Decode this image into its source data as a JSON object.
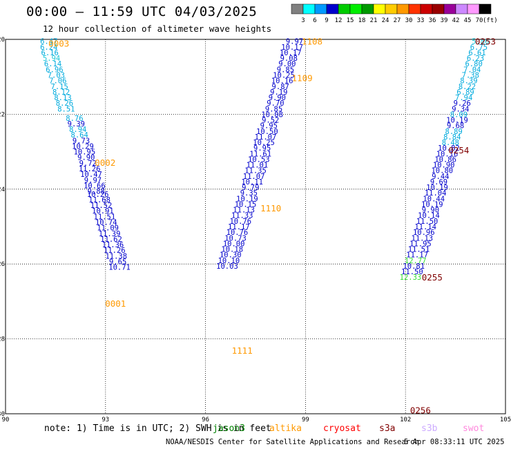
{
  "title": "00:00 – 11:59 UTC 04/03/2025",
  "subtitle": "12 hour collection of altimeter wave heights",
  "note": "note: 1) Time is in UTC; 2) SWH is in feet",
  "footer_left": "NOAA/NESDIS Center for Satellite Applications and Research",
  "footer_right": "5 Apr 08:33:11 UTC 2025",
  "satellites": [
    {
      "name": "jason3",
      "color": "#008000"
    },
    {
      "name": "altika",
      "color": "#ff9900"
    },
    {
      "name": "cryosat",
      "color": "#ff0000"
    },
    {
      "name": "s3a",
      "color": "#800000"
    },
    {
      "name": "s3b",
      "color": "#ccaaff"
    },
    {
      "name": "swot",
      "color": "#ff88dd"
    }
  ],
  "chart_data": {
    "type": "scatter",
    "xlabel": "",
    "ylabel": "",
    "xlim": [
      90,
      105
    ],
    "ylim": [
      -30,
      -20
    ],
    "x_ticks": [
      "90",
      "93",
      "96",
      "99",
      "102",
      "105"
    ],
    "y_ticks": [
      "-20",
      "-22",
      "-24",
      "-26",
      "-28",
      "-30"
    ],
    "grid": true,
    "colorbar": {
      "ticks": [
        "3",
        "6",
        "9",
        "12",
        "15",
        "18",
        "21",
        "24",
        "27",
        "30",
        "33",
        "36",
        "39",
        "42",
        "45",
        "70"
      ],
      "unit": "(ft)",
      "colors": [
        "#808080",
        "#00ffff",
        "#0099ff",
        "#0000cc",
        "#00cc00",
        "#00ee00",
        "#009900",
        "#ffff00",
        "#ffcc00",
        "#ff9900",
        "#ff3300",
        "#cc0000",
        "#990000",
        "#990099",
        "#cc88ff",
        "#ff99ff",
        "#000000"
      ]
    },
    "time_labels": [
      {
        "text": "0003",
        "lon": 91.6,
        "lat": -20.1,
        "color": "#ff9900"
      },
      {
        "text": "0002",
        "lon": 92.99,
        "lat": -23.28,
        "color": "#ff9900"
      },
      {
        "text": "0001",
        "lon": 93.3,
        "lat": -27.05,
        "color": "#ff9900"
      },
      {
        "text": "1108",
        "lon": 99.2,
        "lat": -20.05,
        "color": "#ff9900"
      },
      {
        "text": "1109",
        "lon": 98.9,
        "lat": -21.02,
        "color": "#ff9900"
      },
      {
        "text": "1110",
        "lon": 97.96,
        "lat": -24.5,
        "color": "#ff9900"
      },
      {
        "text": "1111",
        "lon": 97.1,
        "lat": -28.3,
        "color": "#ff9900"
      },
      {
        "text": "0253",
        "lon": 104.4,
        "lat": -20.05,
        "color": "#800000"
      },
      {
        "text": "0254",
        "lon": 103.6,
        "lat": -22.95,
        "color": "#800000"
      },
      {
        "text": "0255",
        "lon": 102.8,
        "lat": -26.35,
        "color": "#800000"
      },
      {
        "text": "0256",
        "lon": 102.45,
        "lat": -29.9,
        "color": "#800000"
      }
    ],
    "points": [
      {
        "lon": 91.3,
        "lat": -20.05,
        "v": 6.47
      },
      {
        "lon": 91.3,
        "lat": -20.2,
        "v": 6.24
      },
      {
        "lon": 91.33,
        "lat": -20.35,
        "v": 6.16
      },
      {
        "lon": 91.38,
        "lat": -20.5,
        "v": 5.94
      },
      {
        "lon": 91.42,
        "lat": -20.65,
        "v": 6.14
      },
      {
        "lon": 91.47,
        "lat": -20.8,
        "v": 6.96
      },
      {
        "lon": 91.52,
        "lat": -20.95,
        "v": 7.03
      },
      {
        "lon": 91.57,
        "lat": -21.1,
        "v": 7.06
      },
      {
        "lon": 91.62,
        "lat": -21.25,
        "v": 7.15
      },
      {
        "lon": 91.67,
        "lat": -21.4,
        "v": 8.12
      },
      {
        "lon": 91.72,
        "lat": -21.55,
        "v": 8.13
      },
      {
        "lon": 91.77,
        "lat": -21.7,
        "v": 8.26
      },
      {
        "lon": 91.82,
        "lat": -21.85,
        "v": 8.51
      },
      {
        "lon": 92.07,
        "lat": -22.1,
        "v": 8.76
      },
      {
        "lon": 92.12,
        "lat": -22.25,
        "v": 9.39
      },
      {
        "lon": 92.17,
        "lat": -22.4,
        "v": 8.94
      },
      {
        "lon": 92.22,
        "lat": -22.55,
        "v": 8.64
      },
      {
        "lon": 92.27,
        "lat": -22.7,
        "v": 9.73
      },
      {
        "lon": 92.32,
        "lat": -22.85,
        "v": 10.29
      },
      {
        "lon": 92.37,
        "lat": -23.0,
        "v": 10.95
      },
      {
        "lon": 92.42,
        "lat": -23.15,
        "v": 9.9
      },
      {
        "lon": 92.47,
        "lat": -23.3,
        "v": 9.72
      },
      {
        "lon": 92.52,
        "lat": -23.45,
        "v": 11.26
      },
      {
        "lon": 92.57,
        "lat": -23.6,
        "v": 10.47
      },
      {
        "lon": 92.62,
        "lat": -23.75,
        "v": 9.97
      },
      {
        "lon": 92.67,
        "lat": -23.9,
        "v": 10.66
      },
      {
        "lon": 92.72,
        "lat": -24.05,
        "v": 9.88
      },
      {
        "lon": 92.77,
        "lat": -24.13,
        "v": 10.26
      },
      {
        "lon": 92.82,
        "lat": -24.28,
        "v": 11.68
      },
      {
        "lon": 92.87,
        "lat": -24.43,
        "v": 11.52
      },
      {
        "lon": 92.92,
        "lat": -24.58,
        "v": 10.91
      },
      {
        "lon": 92.97,
        "lat": -24.73,
        "v": 11.51
      },
      {
        "lon": 93.02,
        "lat": -24.88,
        "v": 10.74
      },
      {
        "lon": 93.07,
        "lat": -25.03,
        "v": 11.09
      },
      {
        "lon": 93.12,
        "lat": -25.18,
        "v": 11.39
      },
      {
        "lon": 93.17,
        "lat": -25.33,
        "v": 11.62
      },
      {
        "lon": 93.22,
        "lat": -25.48,
        "v": 11.36
      },
      {
        "lon": 93.27,
        "lat": -25.63,
        "v": 11.26
      },
      {
        "lon": 93.32,
        "lat": -25.78,
        "v": 11.38
      },
      {
        "lon": 93.37,
        "lat": -25.93,
        "v": 9.65
      },
      {
        "lon": 93.42,
        "lat": -26.08,
        "v": 10.71
      },
      {
        "lon": 98.67,
        "lat": -20.05,
        "v": 9.97
      },
      {
        "lon": 98.6,
        "lat": -20.2,
        "v": 10.17
      },
      {
        "lon": 98.55,
        "lat": -20.35,
        "v": 10.17
      },
      {
        "lon": 98.5,
        "lat": -20.5,
        "v": 9.08
      },
      {
        "lon": 98.45,
        "lat": -20.65,
        "v": 9.0
      },
      {
        "lon": 98.4,
        "lat": -20.8,
        "v": 9.85
      },
      {
        "lon": 98.35,
        "lat": -20.95,
        "v": 10.25
      },
      {
        "lon": 98.3,
        "lat": -21.1,
        "v": 10.16
      },
      {
        "lon": 98.25,
        "lat": -21.25,
        "v": 9.87
      },
      {
        "lon": 98.2,
        "lat": -21.4,
        "v": 9.19
      },
      {
        "lon": 98.15,
        "lat": -21.55,
        "v": 9.9
      },
      {
        "lon": 98.1,
        "lat": -21.7,
        "v": 9.7
      },
      {
        "lon": 98.05,
        "lat": -21.85,
        "v": 9.85
      },
      {
        "lon": 98.0,
        "lat": -22.0,
        "v": 10.08
      },
      {
        "lon": 97.95,
        "lat": -22.15,
        "v": 9.52
      },
      {
        "lon": 97.9,
        "lat": -22.3,
        "v": 9.95
      },
      {
        "lon": 97.85,
        "lat": -22.45,
        "v": 10.5
      },
      {
        "lon": 97.8,
        "lat": -22.6,
        "v": 11.07
      },
      {
        "lon": 97.75,
        "lat": -22.75,
        "v": 10.25
      },
      {
        "lon": 97.7,
        "lat": -22.9,
        "v": 9.95
      },
      {
        "lon": 97.65,
        "lat": -23.05,
        "v": 11.61
      },
      {
        "lon": 97.6,
        "lat": -23.2,
        "v": 10.53
      },
      {
        "lon": 97.55,
        "lat": -23.35,
        "v": 11.01
      },
      {
        "lon": 97.5,
        "lat": -23.5,
        "v": 11.35
      },
      {
        "lon": 97.45,
        "lat": -23.65,
        "v": 11.07
      },
      {
        "lon": 97.4,
        "lat": -23.8,
        "v": 10.11
      },
      {
        "lon": 97.35,
        "lat": -23.95,
        "v": 9.79
      },
      {
        "lon": 97.3,
        "lat": -24.1,
        "v": 9.35
      },
      {
        "lon": 97.25,
        "lat": -24.25,
        "v": 10.19
      },
      {
        "lon": 97.2,
        "lat": -24.4,
        "v": 10.15
      },
      {
        "lon": 97.15,
        "lat": -24.55,
        "v": 11.13
      },
      {
        "lon": 97.1,
        "lat": -24.7,
        "v": 11.33
      },
      {
        "lon": 97.05,
        "lat": -24.85,
        "v": 10.76
      },
      {
        "lon": 97.0,
        "lat": -25.0,
        "v": 11.17
      },
      {
        "lon": 96.95,
        "lat": -25.15,
        "v": 10.76
      },
      {
        "lon": 96.9,
        "lat": -25.3,
        "v": 10.73
      },
      {
        "lon": 96.85,
        "lat": -25.45,
        "v": 10.0
      },
      {
        "lon": 96.8,
        "lat": -25.6,
        "v": 10.18
      },
      {
        "lon": 96.75,
        "lat": -25.75,
        "v": 10.3
      },
      {
        "lon": 96.7,
        "lat": -25.9,
        "v": 10.1
      },
      {
        "lon": 96.65,
        "lat": -26.05,
        "v": 10.03
      },
      {
        "lon": 104.25,
        "lat": -20.05,
        "v": 5.86
      },
      {
        "lon": 104.2,
        "lat": -20.2,
        "v": 6.75
      },
      {
        "lon": 104.15,
        "lat": -20.35,
        "v": 6.61
      },
      {
        "lon": 104.1,
        "lat": -20.5,
        "v": 6.23
      },
      {
        "lon": 104.05,
        "lat": -20.65,
        "v": 6.8
      },
      {
        "lon": 104.0,
        "lat": -20.8,
        "v": 7.04
      },
      {
        "lon": 103.95,
        "lat": -20.95,
        "v": 7.38
      },
      {
        "lon": 103.9,
        "lat": -21.1,
        "v": 8.39
      },
      {
        "lon": 103.85,
        "lat": -21.25,
        "v": 8.22
      },
      {
        "lon": 103.8,
        "lat": -21.4,
        "v": 6.89
      },
      {
        "lon": 103.75,
        "lat": -21.55,
        "v": 7.94
      },
      {
        "lon": 103.7,
        "lat": -21.7,
        "v": 9.26
      },
      {
        "lon": 103.65,
        "lat": -21.85,
        "v": 9.34
      },
      {
        "lon": 103.6,
        "lat": -22.0,
        "v": 8.09
      },
      {
        "lon": 103.55,
        "lat": -22.15,
        "v": 10.19
      },
      {
        "lon": 103.5,
        "lat": -22.3,
        "v": 9.68
      },
      {
        "lon": 103.45,
        "lat": -22.45,
        "v": 8.89
      },
      {
        "lon": 103.4,
        "lat": -22.6,
        "v": 8.84
      },
      {
        "lon": 103.35,
        "lat": -22.75,
        "v": 8.48
      },
      {
        "lon": 103.3,
        "lat": -22.9,
        "v": 10.82
      },
      {
        "lon": 103.25,
        "lat": -23.05,
        "v": 10.16
      },
      {
        "lon": 103.2,
        "lat": -23.2,
        "v": 10.86
      },
      {
        "lon": 103.15,
        "lat": -23.35,
        "v": 10.9
      },
      {
        "lon": 103.1,
        "lat": -23.5,
        "v": 10.8
      },
      {
        "lon": 103.05,
        "lat": -23.65,
        "v": 9.44
      },
      {
        "lon": 103.0,
        "lat": -23.8,
        "v": 9.69
      },
      {
        "lon": 102.95,
        "lat": -23.95,
        "v": 10.19
      },
      {
        "lon": 102.9,
        "lat": -24.1,
        "v": 11.04
      },
      {
        "lon": 102.85,
        "lat": -24.25,
        "v": 10.44
      },
      {
        "lon": 102.8,
        "lat": -24.4,
        "v": 10.19
      },
      {
        "lon": 102.75,
        "lat": -24.55,
        "v": 9.9
      },
      {
        "lon": 102.7,
        "lat": -24.7,
        "v": 10.14
      },
      {
        "lon": 102.65,
        "lat": -24.85,
        "v": 11.5
      },
      {
        "lon": 102.6,
        "lat": -25.0,
        "v": 11.14
      },
      {
        "lon": 102.55,
        "lat": -25.15,
        "v": 10.96
      },
      {
        "lon": 102.5,
        "lat": -25.3,
        "v": 11.13
      },
      {
        "lon": 102.45,
        "lat": -25.45,
        "v": 11.95
      },
      {
        "lon": 102.4,
        "lat": -25.6,
        "v": 11.51
      },
      {
        "lon": 102.35,
        "lat": -25.75,
        "v": 11.17
      },
      {
        "lon": 102.3,
        "lat": -25.9,
        "v": 12.77
      },
      {
        "lon": 102.25,
        "lat": -26.05,
        "v": 10.81
      },
      {
        "lon": 102.2,
        "lat": -26.2,
        "v": 11.5
      },
      {
        "lon": 102.15,
        "lat": -26.35,
        "v": 12.33
      }
    ]
  }
}
